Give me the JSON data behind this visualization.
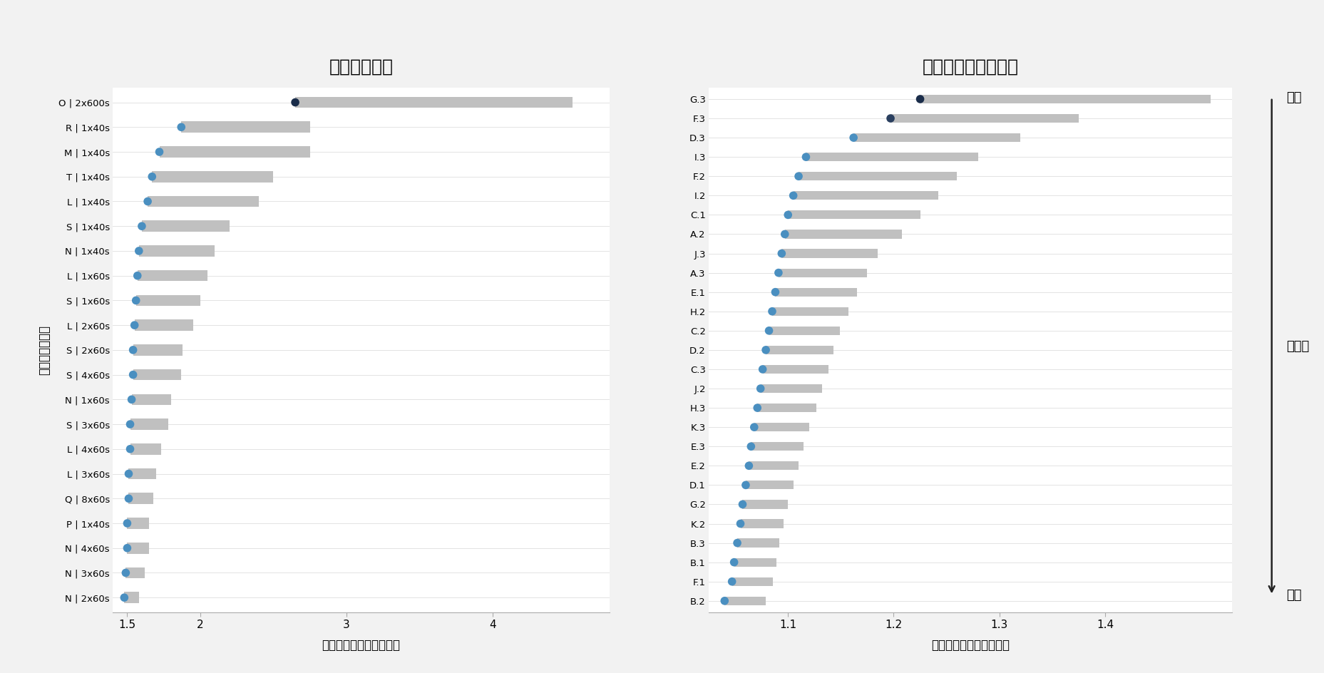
{
  "left_title": "核酸抽出方法",
  "right_title": "ライブラリ調整方法",
  "xlabel": "期待値からの偏差（倍）",
  "ylabel": "異なる分析手法",
  "right_label_low": "低い",
  "right_label_high": "高い",
  "right_label_precision": "精確性",
  "left_categories": [
    "O | 2x600s",
    "R | 1x40s",
    "M | 1x40s",
    "T | 1x40s",
    "L | 1x40s",
    "S | 1x40s",
    "N | 1x40s",
    "L | 1x60s",
    "S | 1x60s",
    "L | 2x60s",
    "S | 2x60s",
    "S | 4x60s",
    "N | 1x60s",
    "S | 3x60s",
    "L | 4x60s",
    "L | 3x60s",
    "Q | 8x60s",
    "P | 1x40s",
    "N | 4x60s",
    "N | 3x60s",
    "N | 2x60s"
  ],
  "left_dot_values": [
    2.65,
    1.87,
    1.72,
    1.67,
    1.64,
    1.6,
    1.58,
    1.57,
    1.56,
    1.55,
    1.54,
    1.54,
    1.53,
    1.52,
    1.52,
    1.51,
    1.51,
    1.5,
    1.5,
    1.49,
    1.48
  ],
  "left_bar_ends": [
    4.55,
    2.75,
    2.75,
    2.5,
    2.4,
    2.2,
    2.1,
    2.05,
    2.0,
    1.95,
    1.88,
    1.87,
    1.8,
    1.78,
    1.73,
    1.7,
    1.68,
    1.65,
    1.65,
    1.62,
    1.58
  ],
  "left_dot_colors": [
    "#1a2d4a",
    "#4a8fc0",
    "#4a8fc0",
    "#4a8fc0",
    "#4a8fc0",
    "#4a8fc0",
    "#4a8fc0",
    "#4a8fc0",
    "#4a8fc0",
    "#4a8fc0",
    "#4a8fc0",
    "#4a8fc0",
    "#4a8fc0",
    "#4a8fc0",
    "#4a8fc0",
    "#4a8fc0",
    "#4a8fc0",
    "#4a8fc0",
    "#4a8fc0",
    "#4a8fc0",
    "#4a8fc0"
  ],
  "left_xlim": [
    1.4,
    4.8
  ],
  "left_xticks": [
    1.5,
    2.0,
    3.0,
    4.0
  ],
  "right_categories": [
    "G.3",
    "F.3",
    "D.3",
    "I.3",
    "F.2",
    "I.2",
    "C.1",
    "A.2",
    "J.3",
    "A.3",
    "E.1",
    "H.2",
    "C.2",
    "D.2",
    "C.3",
    "J.2",
    "H.3",
    "K.3",
    "E.3",
    "E.2",
    "D.1",
    "G.2",
    "K.2",
    "B.3",
    "B.1",
    "F.1",
    "B.2"
  ],
  "right_dot_values": [
    1.225,
    1.197,
    1.162,
    1.117,
    1.11,
    1.105,
    1.1,
    1.097,
    1.094,
    1.091,
    1.088,
    1.085,
    1.082,
    1.079,
    1.076,
    1.074,
    1.071,
    1.068,
    1.065,
    1.063,
    1.06,
    1.057,
    1.055,
    1.052,
    1.049,
    1.047,
    1.04
  ],
  "right_bar_ends": [
    1.5,
    1.375,
    1.32,
    1.28,
    1.26,
    1.242,
    1.225,
    1.208,
    1.185,
    1.175,
    1.165,
    1.157,
    1.149,
    1.143,
    1.138,
    1.132,
    1.127,
    1.12,
    1.115,
    1.11,
    1.105,
    1.1,
    1.096,
    1.092,
    1.089,
    1.086,
    1.079
  ],
  "right_dot_colors": [
    "#1a2d4a",
    "#2a3f5f",
    "#4a8fc0",
    "#4a8fc0",
    "#4a8fc0",
    "#4a8fc0",
    "#4a8fc0",
    "#4a8fc0",
    "#4a8fc0",
    "#4a8fc0",
    "#4a8fc0",
    "#4a8fc0",
    "#4a8fc0",
    "#4a8fc0",
    "#4a8fc0",
    "#4a8fc0",
    "#4a8fc0",
    "#4a8fc0",
    "#4a8fc0",
    "#4a8fc0",
    "#4a8fc0",
    "#4a8fc0",
    "#4a8fc0",
    "#4a8fc0",
    "#4a8fc0",
    "#4a8fc0",
    "#4a8fc0"
  ],
  "right_xlim": [
    1.025,
    1.52
  ],
  "right_xticks": [
    1.1,
    1.2,
    1.3,
    1.4
  ],
  "bar_color": "#c0c0c0",
  "bg_color": "#f2f2f2",
  "plot_bg": "#ffffff",
  "grid_color": "#e3e3e3",
  "title_fontsize": 18,
  "label_fontsize": 12,
  "tick_fontsize": 11,
  "ytick_fontsize": 9.5
}
